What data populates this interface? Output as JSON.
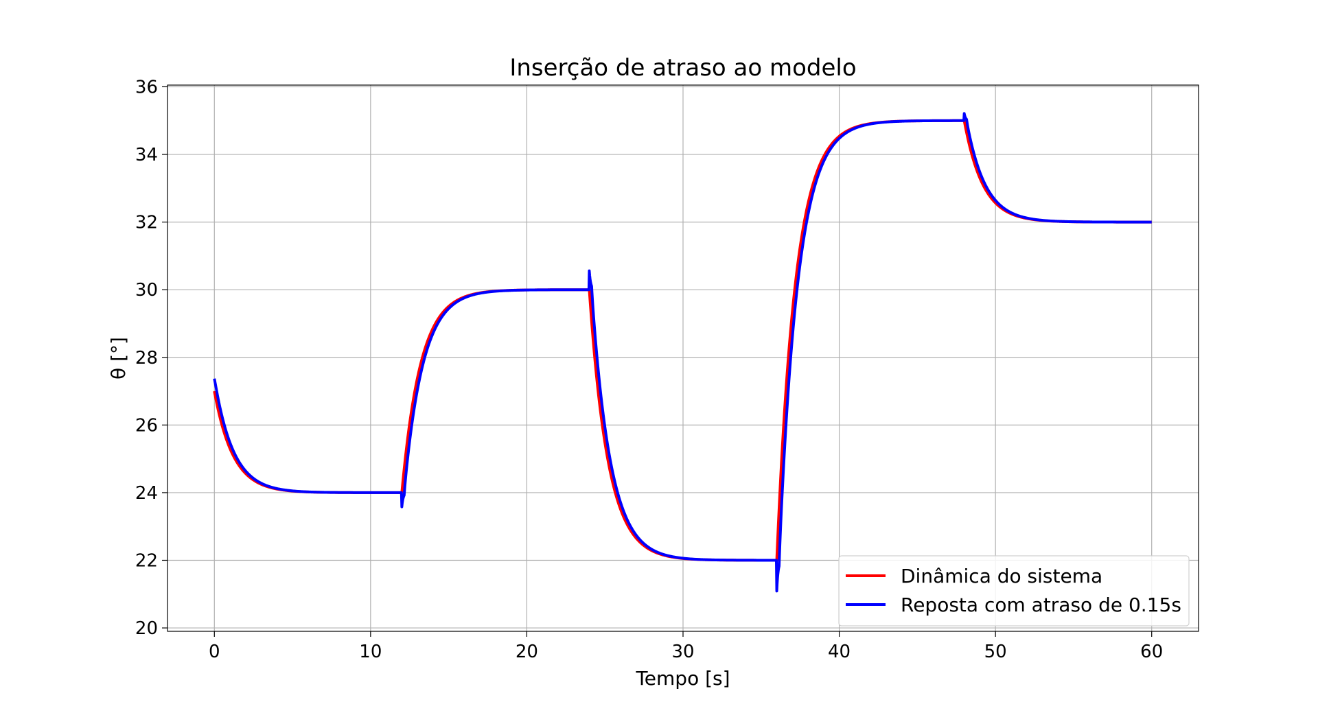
{
  "chart_data": {
    "type": "line",
    "title": "Inserção de atraso ao modelo",
    "xlabel": "Tempo [s]",
    "ylabel": "θ [°]",
    "xlim": [
      -3,
      63
    ],
    "ylim": [
      19.9,
      36.05
    ],
    "xticks": [
      0,
      10,
      20,
      30,
      40,
      50,
      60
    ],
    "yticks": [
      20,
      22,
      24,
      26,
      28,
      30,
      32,
      34,
      36
    ],
    "grid": true,
    "legend_position": "lower-right",
    "model": {
      "tau": 1.2,
      "delay": 0.15,
      "initial": 27,
      "segments": [
        {
          "start": 0,
          "end": 12,
          "target": 24
        },
        {
          "start": 12,
          "end": 24,
          "target": 30
        },
        {
          "start": 24,
          "end": 36,
          "target": 22
        },
        {
          "start": 36,
          "end": 48,
          "target": 35
        },
        {
          "start": 48,
          "end": 60,
          "target": 32
        }
      ]
    },
    "series": [
      {
        "name": "Dinâmica do sistema",
        "color": "#ff0000"
      },
      {
        "name": "Reposta com atraso de 0.15s",
        "color": "#0000ff"
      }
    ]
  }
}
